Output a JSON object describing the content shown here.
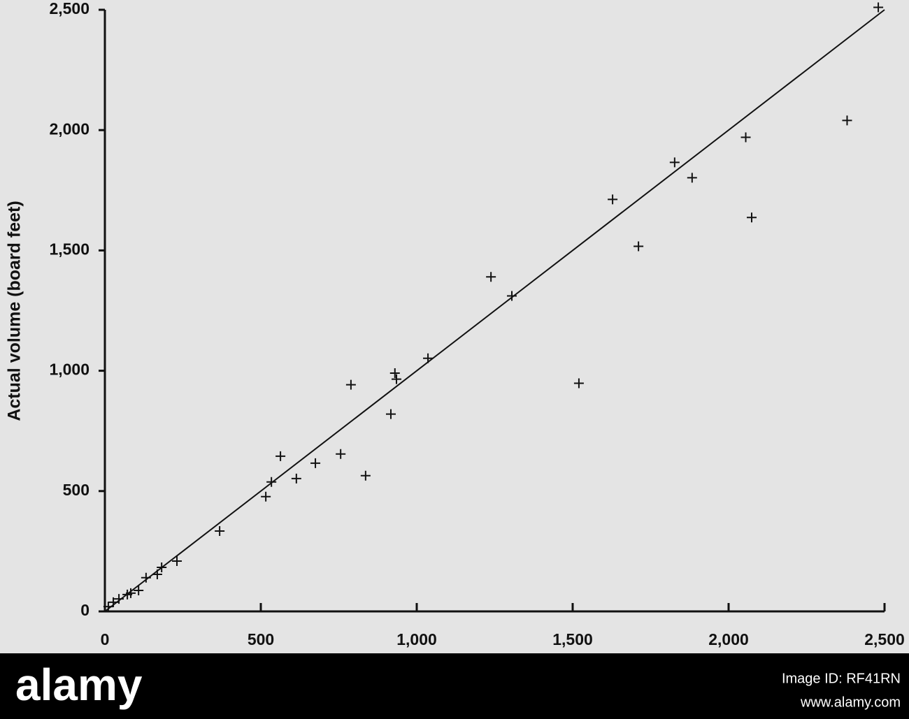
{
  "chart_data": {
    "type": "scatter",
    "y_label": "Actual volume (board feet)",
    "color": "#111111",
    "xlim": [
      0,
      2500
    ],
    "ylim": [
      0,
      2500
    ],
    "xticks": [
      0,
      500,
      {
        "value": 1000,
        "label": "1,000"
      },
      {
        "value": 1500,
        "label": "1,500"
      },
      {
        "value": 2000,
        "label": "2,000"
      },
      {
        "value": 2500,
        "label": "2,500"
      }
    ],
    "yticks": [
      0,
      500,
      {
        "value": 1000,
        "label": "1,000"
      },
      {
        "value": 1500,
        "label": "1,500"
      },
      {
        "value": 2000,
        "label": "2,000"
      },
      {
        "value": 2500,
        "label": "2,500"
      }
    ],
    "x": [
      2480,
      2380,
      2055,
      1827,
      1883,
      2074,
      1628,
      1711,
      1520,
      1238,
      1305,
      1036,
      930,
      935,
      789,
      917,
      836,
      756,
      675,
      563,
      534,
      516,
      614,
      368,
      231,
      182,
      168,
      132,
      108,
      83,
      72,
      45,
      27,
      11
    ],
    "values": [
      2510,
      2040,
      1970,
      1866,
      1802,
      1637,
      1712,
      1517,
      948,
      1390,
      1311,
      1052,
      990,
      965,
      942,
      820,
      564,
      654,
      616,
      645,
      538,
      477,
      552,
      334,
      209,
      183,
      154,
      140,
      87,
      76,
      70,
      52,
      38,
      20
    ],
    "reference_line": {
      "x": [
        0,
        2500
      ],
      "y": [
        0,
        2500
      ]
    }
  },
  "watermark": {
    "logo": "alamy",
    "image_id": "Image ID: RF41RN",
    "url": "www.alamy.com"
  }
}
